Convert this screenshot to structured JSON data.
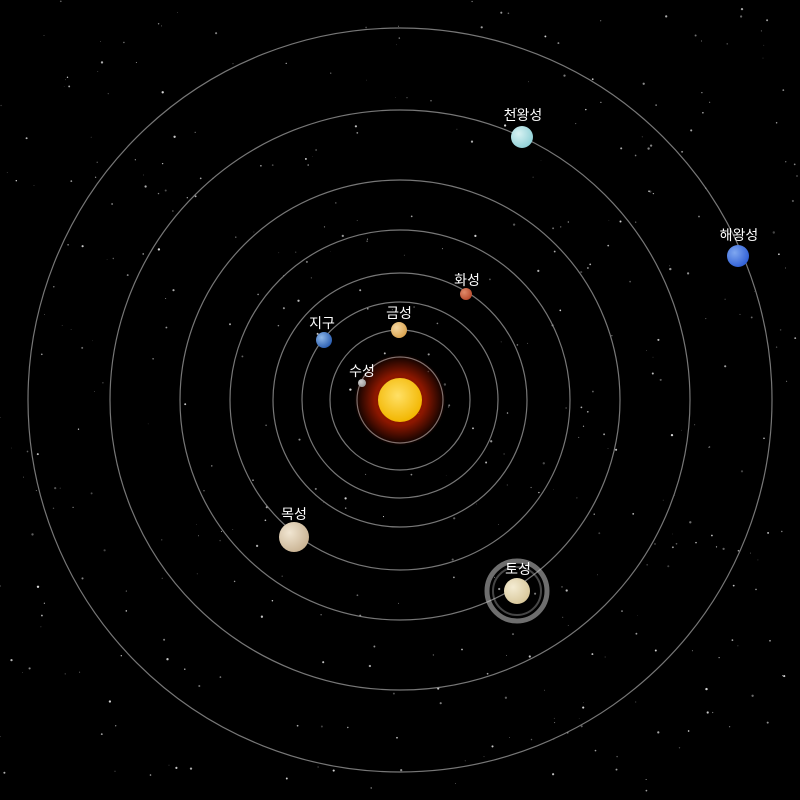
{
  "scene": {
    "background_color": "#000000",
    "orbit_color": "#8c8c8c",
    "sun": {
      "color_core": "#ffe066",
      "color_edge": "#f2b600",
      "glow_color": "#ff2a00"
    },
    "planets": [
      {
        "key": "mercury",
        "label": "수성",
        "color": "#9a9a9a",
        "highlight": "#d0d0d0",
        "interactable": true
      },
      {
        "key": "venus",
        "label": "금성",
        "color": "#d9a24e",
        "highlight": "#f5d7a0",
        "interactable": true
      },
      {
        "key": "earth",
        "label": "지구",
        "color": "#2a5db0",
        "highlight": "#8fb8e8",
        "interactable": true
      },
      {
        "key": "mars",
        "label": "화성",
        "color": "#b84a2c",
        "highlight": "#e08a6a",
        "interactable": true
      },
      {
        "key": "jupiter",
        "label": "목성",
        "color": "#c9b393",
        "highlight": "#f1e6d2",
        "interactable": true
      },
      {
        "key": "saturn",
        "label": "토성",
        "color": "#d8c79a",
        "highlight": "#f4ecd3",
        "ring_color": "#c8c8c8",
        "interactable": true
      },
      {
        "key": "uranus",
        "label": "천왕성",
        "color": "#8fd0d6",
        "highlight": "#d8f2f3",
        "interactable": true
      },
      {
        "key": "neptune",
        "label": "해왕성",
        "color": "#2f5fd6",
        "highlight": "#7fa7f0",
        "interactable": true
      }
    ]
  }
}
